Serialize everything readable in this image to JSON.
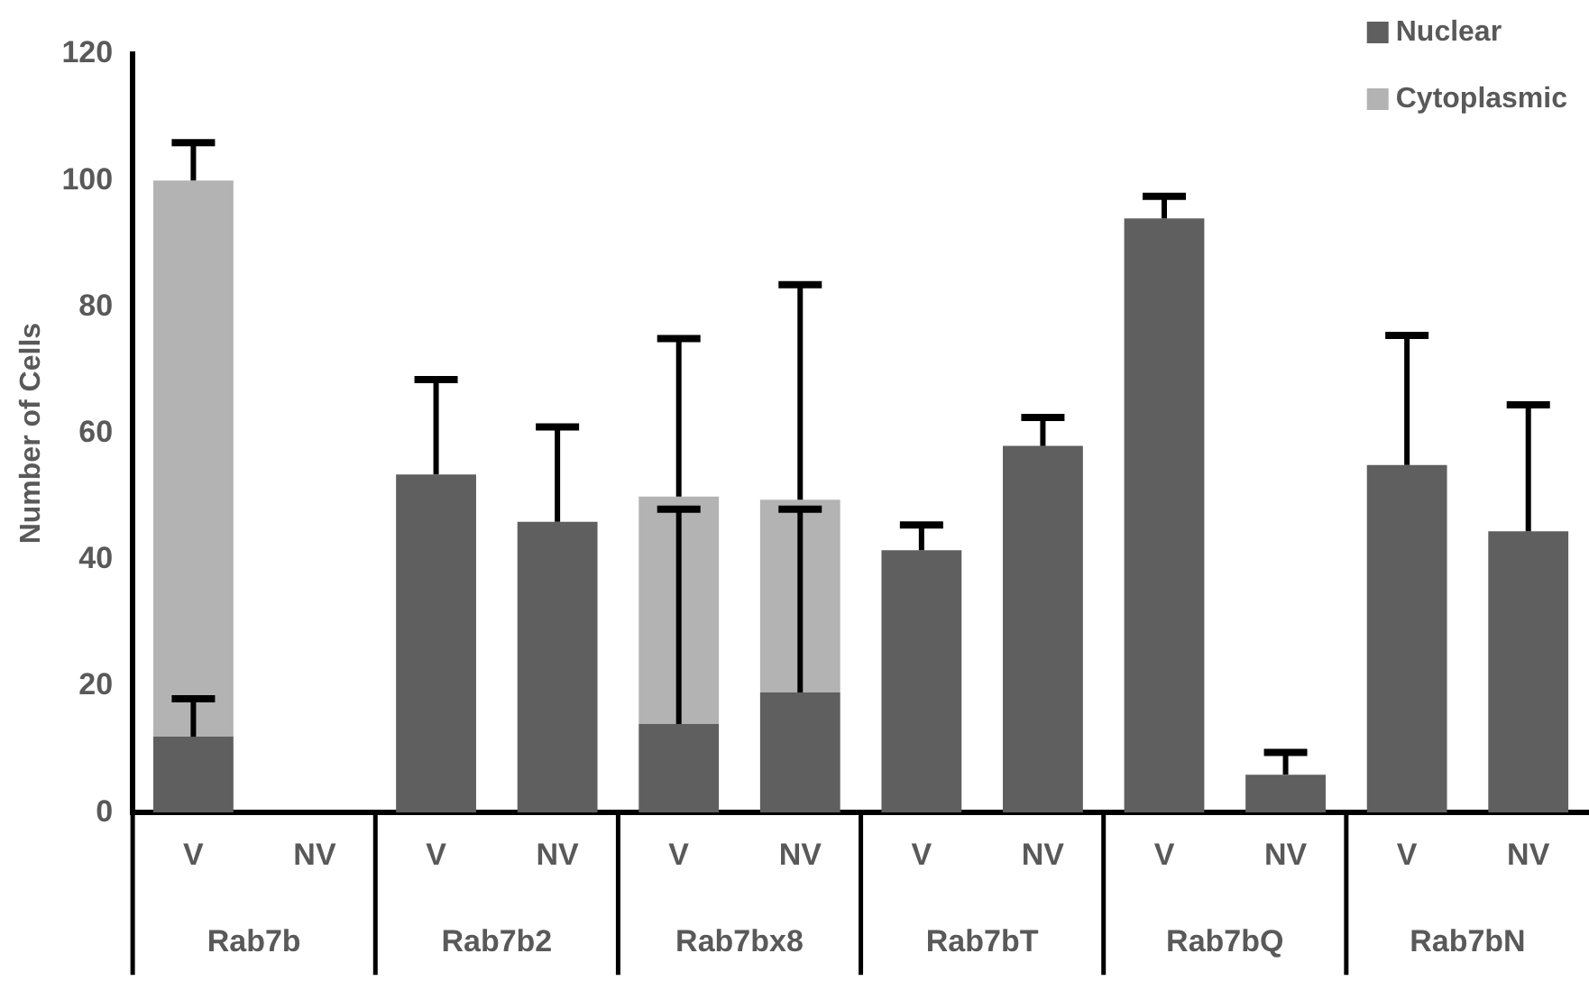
{
  "chart_data": {
    "type": "bar",
    "stacked": true,
    "ylabel": "Number of Cells",
    "categories": [
      "V",
      "NV",
      "V",
      "NV",
      "V",
      "NV",
      "V",
      "NV",
      "V",
      "NV",
      "V",
      "NV"
    ],
    "annotations": [
      "Rab7b",
      "Rab7b2",
      "Rab7bx8",
      "Rab7bT",
      "Rab7bQ",
      "Rab7bN"
    ],
    "series": [
      {
        "name": "Nuclear",
        "color": "#5f5f5f",
        "values": [
          12,
          0,
          53.5,
          46,
          14,
          19,
          41.5,
          58,
          94,
          6,
          55,
          44.5
        ],
        "errors": [
          [
            12,
            18
          ],
          null,
          [
            53.5,
            68.5
          ],
          [
            46,
            61
          ],
          [
            14,
            48
          ],
          [
            19,
            48
          ],
          [
            41.5,
            45.5
          ],
          [
            58,
            62.5
          ],
          [
            94,
            97.5
          ],
          [
            6,
            9.5
          ],
          [
            55,
            75.5
          ],
          [
            44.5,
            64.5
          ]
        ]
      },
      {
        "name": "Cytoplasmic",
        "color": "#b3b3b3",
        "values": [
          88,
          0,
          0,
          0,
          36,
          30.5,
          0,
          0,
          0,
          0,
          0,
          0
        ],
        "errors": [
          [
            100,
            106
          ],
          null,
          null,
          null,
          [
            50,
            75
          ],
          [
            49.5,
            83.5
          ],
          null,
          null,
          null,
          null,
          null,
          null
        ]
      }
    ],
    "ylim": [
      0,
      120
    ],
    "yticks": [
      0,
      20,
      40,
      60,
      80,
      100,
      120
    ],
    "legend": "top right"
  }
}
